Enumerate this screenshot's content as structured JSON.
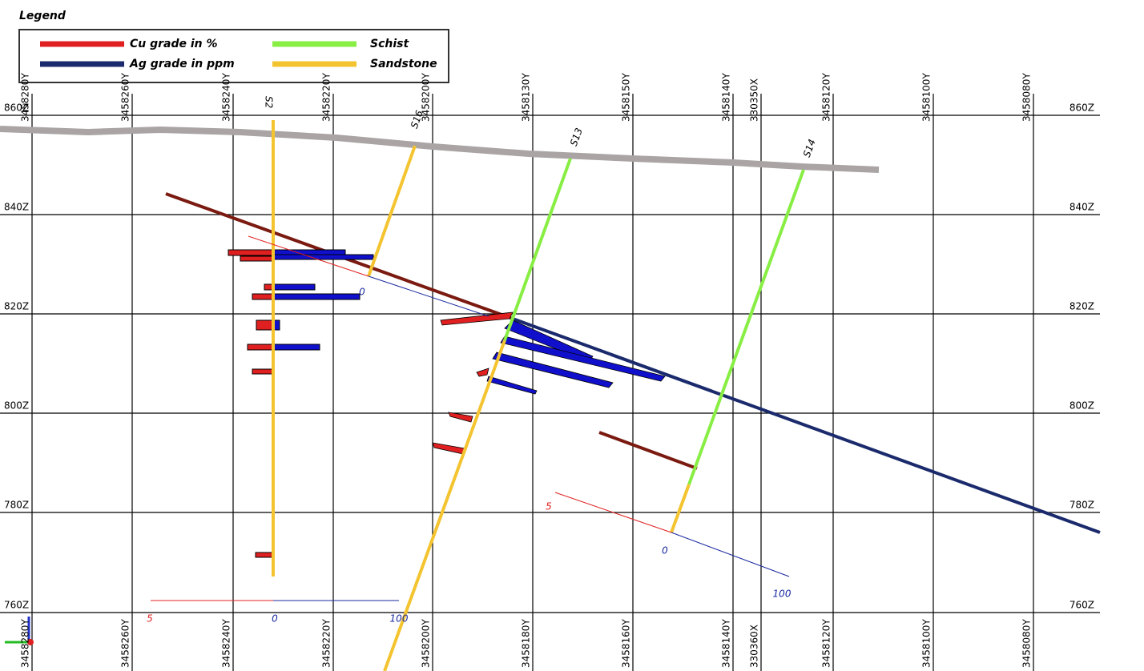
{
  "legend": {
    "title": "Legend",
    "items": [
      {
        "label": "Cu grade in %",
        "color": "#e02020"
      },
      {
        "label": "Ag grade in ppm",
        "color": "#1a2a6c"
      },
      {
        "label": "Schist",
        "color": "#88ee44"
      },
      {
        "label": "Sandstone",
        "color": "#f4c430"
      }
    ]
  },
  "elevation_labels": [
    "860Z",
    "840Z",
    "820Z",
    "800Z",
    "780Z",
    "760Z"
  ],
  "top_grid_labels": [
    "3458280Y",
    "3458260Y",
    "3458240Y",
    "3458220Y",
    "3458200Y",
    "3458130Y",
    "3458150Y",
    "3458140Y",
    "330350X",
    "3458120Y",
    "3458100Y",
    "3458080Y"
  ],
  "bottom_grid_labels": [
    "3458280Y",
    "3458260Y",
    "3458240Y",
    "3458220Y",
    "3458200Y",
    "3458180Y",
    "3458160Y",
    "3458140Y",
    "330360X",
    "3458120Y",
    "3458100Y",
    "3458080Y"
  ],
  "holes": [
    "S2",
    "S16",
    "S13",
    "S14"
  ],
  "scale_labels": [
    "5",
    "0",
    "100",
    "0",
    "5",
    "0",
    "100"
  ]
}
